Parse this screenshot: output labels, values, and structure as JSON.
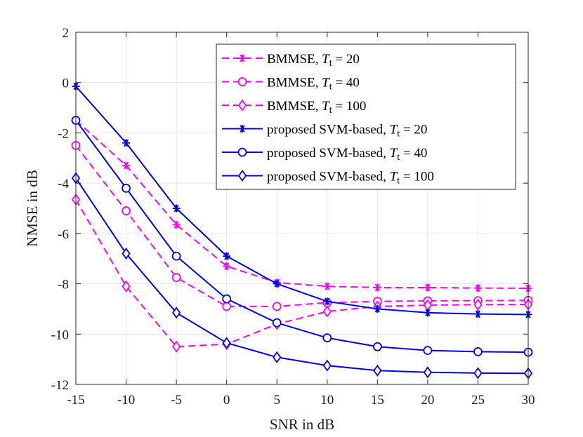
{
  "chart_data": {
    "type": "line",
    "title": "",
    "xlabel": "SNR in dB",
    "ylabel": "NMSE in dB",
    "xlim": [
      -15,
      30
    ],
    "ylim": [
      -12,
      2
    ],
    "x": [
      -15,
      -10,
      -5,
      0,
      5,
      10,
      15,
      20,
      25,
      30
    ],
    "x_tick_labels": [
      "-15",
      "-10",
      "-5",
      "0",
      "5",
      "10",
      "15",
      "20",
      "25",
      "30"
    ],
    "y_ticks": [
      -12,
      -10,
      -8,
      -6,
      -4,
      -2,
      0,
      2
    ],
    "y_tick_labels": [
      "-12",
      "-10",
      "-8",
      "-6",
      "-4",
      "-2",
      "0",
      "2"
    ],
    "grid": true,
    "legend_position": "top-right",
    "colors": {
      "bmmse": "#ff00ff",
      "svm": "#0000ee",
      "axis": "#262626",
      "grid": "#e6e6e6"
    },
    "series": [
      {
        "name": "BMMSE, ",
        "subscript_label": "T_t = 20",
        "color": "#ff00ff",
        "dashed": true,
        "marker": "asterisk",
        "values": [
          -1.5,
          -3.3,
          -5.65,
          -7.3,
          -7.95,
          -8.1,
          -8.15,
          -8.15,
          -8.17,
          -8.18
        ]
      },
      {
        "name": "BMMSE, ",
        "subscript_label": "T_t = 40",
        "color": "#ff00ff",
        "dashed": true,
        "marker": "circle",
        "values": [
          -2.5,
          -5.1,
          -7.75,
          -8.9,
          -8.9,
          -8.75,
          -8.7,
          -8.68,
          -8.67,
          -8.66
        ]
      },
      {
        "name": "BMMSE, ",
        "subscript_label": "T_t = 100",
        "color": "#ff00ff",
        "dashed": true,
        "marker": "diamond",
        "values": [
          -4.65,
          -8.1,
          -10.5,
          -10.4,
          -9.6,
          -9.1,
          -8.9,
          -8.85,
          -8.83,
          -8.82
        ]
      },
      {
        "name": "proposed SVM-based, ",
        "subscript_label": "T_t = 20",
        "color": "#0000ee",
        "dashed": false,
        "marker": "asterisk",
        "values": [
          -0.15,
          -2.4,
          -5.0,
          -6.9,
          -8.0,
          -8.7,
          -9.0,
          -9.15,
          -9.2,
          -9.22
        ]
      },
      {
        "name": "proposed SVM-based, ",
        "subscript_label": "T_t = 40",
        "color": "#0000ee",
        "dashed": false,
        "marker": "circle",
        "values": [
          -1.5,
          -4.2,
          -6.9,
          -8.6,
          -9.55,
          -10.15,
          -10.5,
          -10.65,
          -10.7,
          -10.72
        ]
      },
      {
        "name": "proposed SVM-based, ",
        "subscript_label": "T_t = 100",
        "color": "#0000ee",
        "dashed": false,
        "marker": "diamond",
        "values": [
          -3.8,
          -6.8,
          -9.15,
          -10.35,
          -10.92,
          -11.25,
          -11.45,
          -11.52,
          -11.55,
          -11.56
        ]
      }
    ]
  }
}
